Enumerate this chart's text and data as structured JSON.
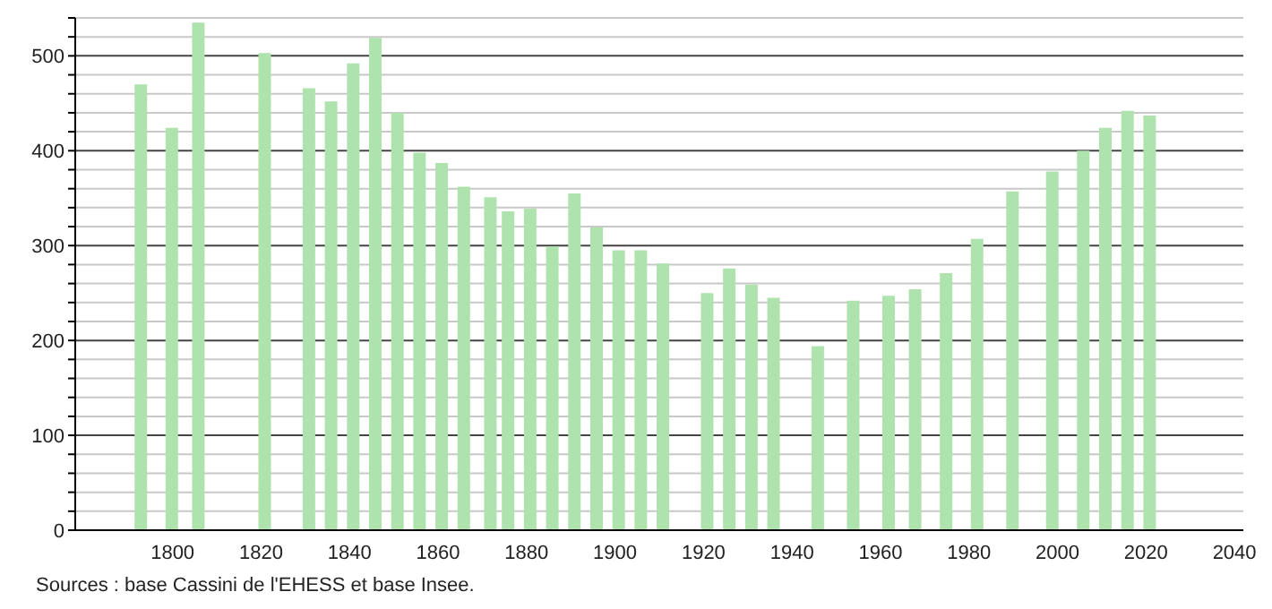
{
  "chart_data": {
    "type": "bar",
    "x": [
      1793,
      1800,
      1806,
      1821,
      1831,
      1836,
      1841,
      1846,
      1851,
      1856,
      1861,
      1866,
      1872,
      1876,
      1881,
      1886,
      1891,
      1896,
      1901,
      1906,
      1911,
      1921,
      1926,
      1931,
      1936,
      1946,
      1954,
      1962,
      1968,
      1975,
      1982,
      1990,
      1999,
      2006,
      2011,
      2016,
      2021
    ],
    "values": [
      470,
      424,
      535,
      503,
      466,
      452,
      492,
      519,
      440,
      398,
      387,
      362,
      351,
      336,
      339,
      299,
      355,
      319,
      295,
      295,
      281,
      250,
      276,
      259,
      245,
      194,
      242,
      247,
      254,
      271,
      307,
      357,
      378,
      400,
      424,
      442,
      437
    ],
    "color": "#aee3ae",
    "xlim": [
      1778,
      2042
    ],
    "xticks": [
      1800,
      1820,
      1840,
      1860,
      1880,
      1900,
      1920,
      1940,
      1960,
      1980,
      2000,
      2020,
      2040
    ],
    "ylim": [
      0,
      540
    ],
    "yticks": [
      0,
      {
        "value": 20,
        "label": null
      },
      {
        "value": 40,
        "label": null
      },
      {
        "value": 60,
        "label": null
      },
      {
        "value": 80,
        "label": null
      },
      100,
      {
        "value": 120,
        "label": null
      },
      {
        "value": 140,
        "label": null
      },
      {
        "value": 160,
        "label": null
      },
      {
        "value": 180,
        "label": null
      },
      200,
      {
        "value": 220,
        "label": null
      },
      {
        "value": 240,
        "label": null
      },
      {
        "value": 260,
        "label": null
      },
      {
        "value": 280,
        "label": null
      },
      300,
      {
        "value": 320,
        "label": null
      },
      {
        "value": 340,
        "label": null
      },
      {
        "value": 360,
        "label": null
      },
      {
        "value": 380,
        "label": null
      },
      400,
      {
        "value": 420,
        "label": null
      },
      {
        "value": 440,
        "label": null
      },
      {
        "value": 460,
        "label": null
      },
      {
        "value": 480,
        "label": null
      },
      500,
      {
        "value": 520,
        "label": null
      },
      {
        "value": 540,
        "label": null
      }
    ],
    "grid": "y",
    "annotations": [
      "Sources : base Cassini de l'EHESS et base Insee."
    ]
  }
}
